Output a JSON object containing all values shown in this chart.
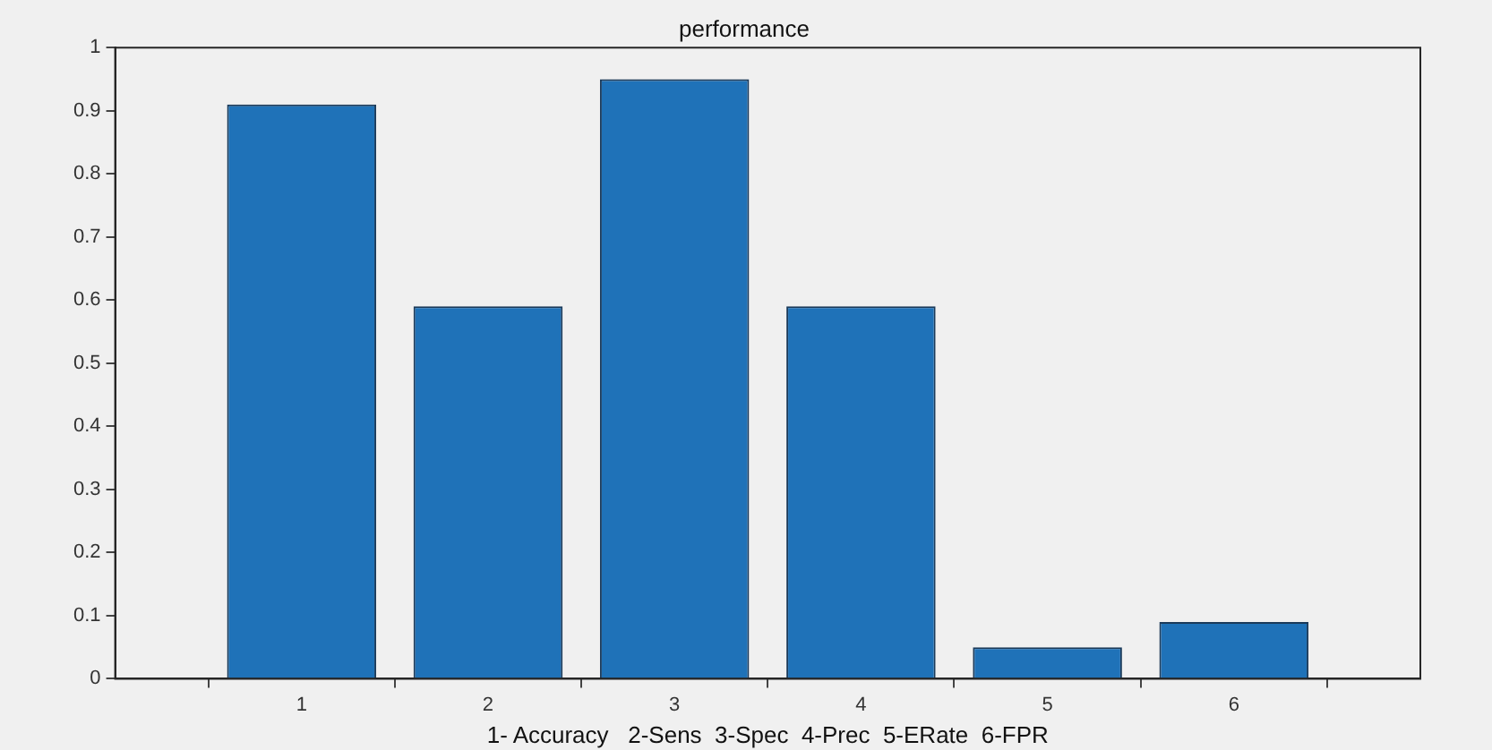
{
  "chart_data": {
    "type": "bar",
    "title": "performance",
    "xlabel": "1- Accuracy   2-Sens  3-Spec  4-Prec  5-ERate  6-FPR",
    "x": [
      1,
      2,
      3,
      4,
      5,
      6
    ],
    "values": [
      0.91,
      0.59,
      0.95,
      0.59,
      0.05,
      0.09
    ],
    "color": "#1f72b8",
    "xlim": [
      0,
      7
    ],
    "xticks": [
      1,
      2,
      3,
      4,
      5,
      6
    ],
    "ylim": [
      0,
      1
    ],
    "yticks": [
      0,
      0.1,
      0.2,
      0.3,
      0.4,
      0.5,
      0.6,
      0.7,
      0.8,
      0.9,
      1
    ],
    "grid": false,
    "legend": false
  }
}
